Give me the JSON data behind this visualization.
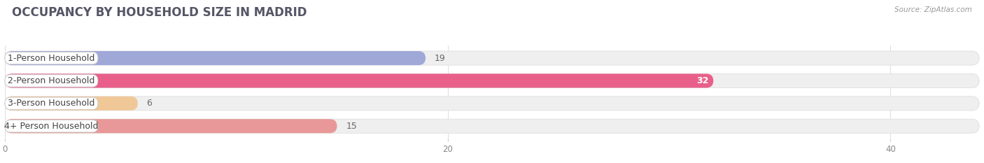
{
  "title": "OCCUPANCY BY HOUSEHOLD SIZE IN MADRID",
  "source": "Source: ZipAtlas.com",
  "categories": [
    "1-Person Household",
    "2-Person Household",
    "3-Person Household",
    "4+ Person Household"
  ],
  "values": [
    19,
    32,
    6,
    15
  ],
  "bar_colors": [
    "#a0a8d8",
    "#e8608a",
    "#f0c898",
    "#e89898"
  ],
  "xlim": [
    0,
    44
  ],
  "xticks": [
    0,
    20,
    40
  ],
  "background_color": "#ffffff",
  "bar_bg_color": "#efefef",
  "bar_border_color": "#dedede",
  "title_fontsize": 12,
  "label_fontsize": 9,
  "value_fontsize": 9,
  "title_color": "#555566",
  "source_color": "#999999",
  "label_color": "#444444",
  "value_color_inside": "#ffffff",
  "value_color_outside": "#666666"
}
